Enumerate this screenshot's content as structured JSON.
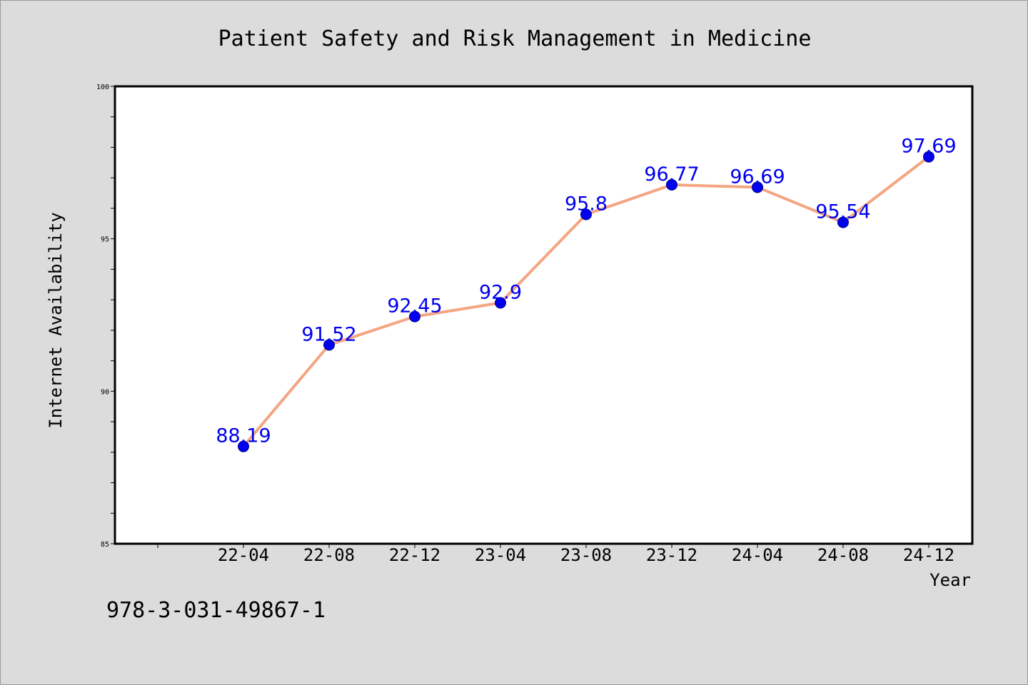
{
  "chart_data": {
    "type": "line",
    "title": "Patient Safety and Risk Management in Medicine",
    "xlabel": "Year",
    "ylabel": "Internet Availability",
    "categories": [
      "22-04",
      "22-08",
      "22-12",
      "23-04",
      "23-08",
      "23-12",
      "24-04",
      "24-08",
      "24-12"
    ],
    "series": [
      {
        "values": [
          88.19,
          91.52,
          92.45,
          92.9,
          95.8,
          96.77,
          96.69,
          95.54,
          97.69
        ]
      }
    ],
    "data_labels": [
      "88.19",
      "91.52",
      "92.45",
      "92.9",
      "95.8",
      "96.77",
      "96.69",
      "95.54",
      "97.69"
    ],
    "ylim": [
      85,
      100
    ],
    "yticks": [
      85,
      90,
      95,
      100
    ],
    "ytick_labels": [
      "85",
      "90",
      "95",
      "100"
    ],
    "grid": false,
    "legend": "none",
    "colors": {
      "line": "#f4a582",
      "marker": "#0000ee",
      "label": "#0000ee"
    }
  },
  "footnote": "978-3-031-49867-1"
}
